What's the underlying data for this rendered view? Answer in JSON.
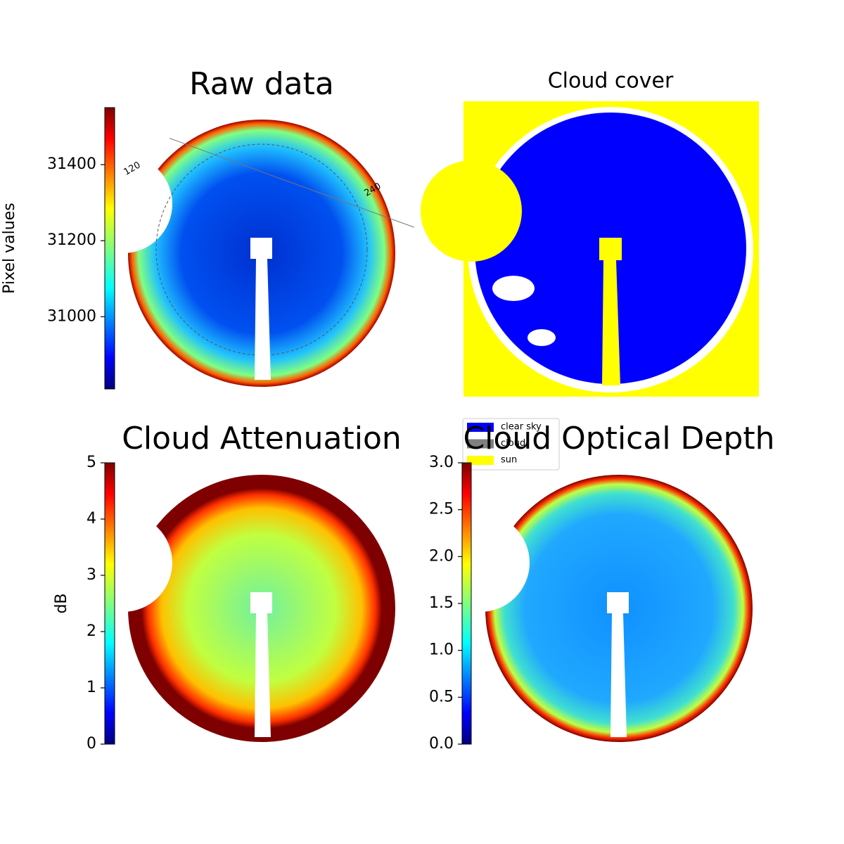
{
  "chart_data": [
    {
      "type": "image",
      "title": "Raw data",
      "colorbar_label": "Pixel values",
      "clim": [
        30810,
        31550
      ],
      "cticks": [
        31000,
        31200,
        31400
      ],
      "colormap": "jet",
      "annotations": [
        "120",
        "240"
      ]
    },
    {
      "type": "image",
      "title": "Cloud cover",
      "legend": [
        {
          "name": "clear sky",
          "color": "#0000ff"
        },
        {
          "name": "cloud",
          "color": "#808080"
        },
        {
          "name": "sun",
          "color": "#ffff00"
        }
      ]
    },
    {
      "type": "image",
      "title": "Cloud Attenuation",
      "colorbar_label": "dB",
      "clim": [
        0,
        5
      ],
      "cticks": [
        0,
        1,
        2,
        3,
        4,
        5
      ],
      "colormap": "jet"
    },
    {
      "type": "image",
      "title": "Cloud Optical Depth",
      "clim": [
        0,
        3
      ],
      "cticks": [
        {
          "value": 0,
          "label": "0.0"
        },
        0.5,
        {
          "value": 1,
          "label": "1.0"
        },
        1.5,
        {
          "value": 2,
          "label": "2.0"
        },
        2.5,
        {
          "value": 3,
          "label": "3.0"
        }
      ],
      "colormap": "jet"
    }
  ]
}
